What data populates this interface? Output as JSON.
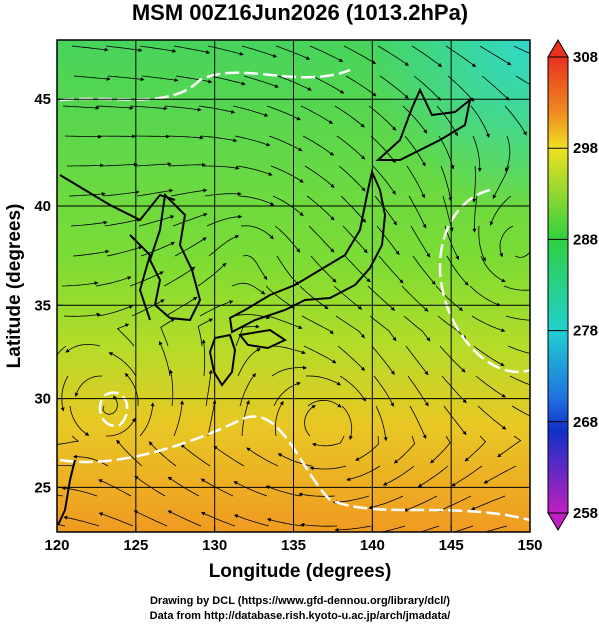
{
  "map": {
    "title": "MSM 00Z16Jun2026 (1013.2hPa)",
    "x_label": "Longitude (degrees)",
    "y_label": "Latitude  (degrees)",
    "projection": "mercator",
    "xlim": [
      120,
      150
    ],
    "xticks": [
      120,
      125,
      130,
      135,
      140,
      145,
      150
    ],
    "ylim": [
      22.4,
      47.6
    ],
    "yticks": [
      25,
      30,
      35,
      40,
      45
    ],
    "grid": true
  },
  "colorbar": {
    "lim": [
      258,
      308
    ],
    "ticks": [
      258,
      268,
      278,
      288,
      298,
      308
    ]
  },
  "footer": {
    "line1": "Drawing by DCL (https://www.gfd-dennou.org/library/dcl/)",
    "line2": "Data from http://database.rish.kyoto-u.ac.jp/arch/jmadata/"
  }
}
